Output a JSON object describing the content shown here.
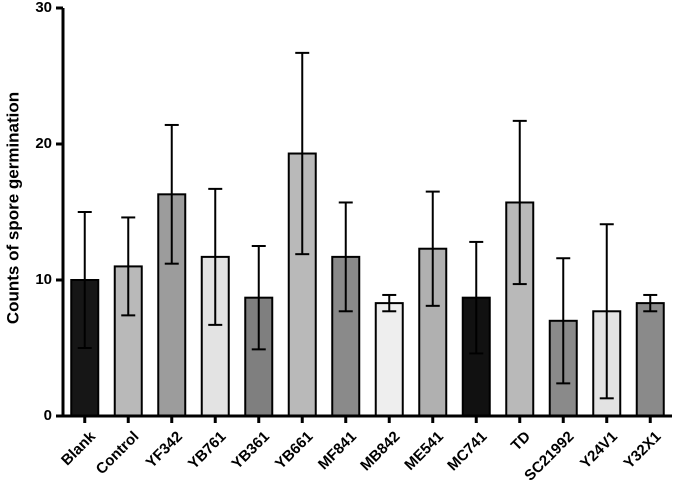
{
  "chart_data": {
    "type": "bar",
    "title": "",
    "xlabel": "",
    "ylabel": "Counts of spore germination",
    "ylim": [
      0,
      30
    ],
    "yticks": [
      0,
      10,
      20,
      30
    ],
    "grid": false,
    "categories": [
      "Blank",
      "Control",
      "YF342",
      "YB761",
      "YB361",
      "YB661",
      "MF841",
      "MB842",
      "ME541",
      "MC741",
      "TD",
      "SC21992",
      "Y24V1",
      "Y32X1"
    ],
    "values": [
      10.0,
      11.0,
      16.3,
      11.7,
      8.7,
      19.3,
      11.7,
      8.3,
      12.3,
      8.7,
      15.7,
      7.0,
      7.7,
      8.3
    ],
    "errors": [
      5.0,
      3.6,
      5.1,
      5.0,
      3.8,
      7.4,
      4.0,
      0.6,
      4.2,
      4.1,
      6.0,
      4.6,
      6.4,
      0.6
    ],
    "colors": [
      "#161616",
      "#b9b9b9",
      "#9c9c9c",
      "#e3e3e3",
      "#7f7f7f",
      "#b9b9b9",
      "#8a8a8a",
      "#eeeeee",
      "#b0b0b0",
      "#111111",
      "#b9b9b9",
      "#8a8a8a",
      "#e3e3e3",
      "#8a8a8a"
    ]
  }
}
